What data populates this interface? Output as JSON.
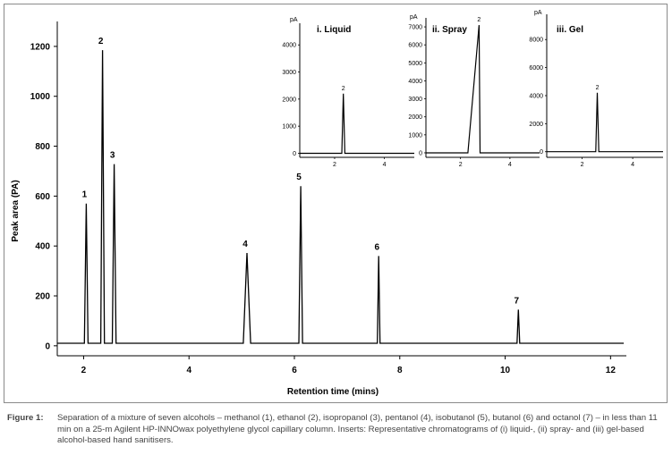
{
  "chart_data": [
    {
      "type": "line",
      "xlabel": "Retention time (mins)",
      "ylabel": "Peak area (PA)",
      "xlim": [
        1.5,
        12.3
      ],
      "ylim": [
        -40,
        1300
      ],
      "xticks": [
        2,
        4,
        6,
        8,
        10,
        12
      ],
      "yticks": [
        0,
        200,
        400,
        600,
        800,
        1000,
        1200
      ],
      "baseline": 10,
      "peaks": [
        {
          "label": "1",
          "x": 2.05,
          "y": 570
        },
        {
          "label": "2",
          "x": 2.36,
          "y": 1185
        },
        {
          "label": "3",
          "x": 2.58,
          "y": 728
        },
        {
          "label": "4",
          "x": 5.1,
          "y": 372
        },
        {
          "label": "5",
          "x": 6.12,
          "y": 640
        },
        {
          "label": "6",
          "x": 7.6,
          "y": 360
        },
        {
          "label": "7",
          "x": 10.25,
          "y": 145
        }
      ]
    },
    {
      "type": "line",
      "title": "i. Liquid",
      "yunit": "pA",
      "xticks": [
        2,
        4
      ],
      "yticks": [
        0,
        1000,
        2000,
        3000,
        4000
      ],
      "peaks": [
        {
          "label": "2",
          "x": 2.35,
          "y": 2200
        }
      ]
    },
    {
      "type": "line",
      "title": "ii. Spray",
      "yunit": "pA",
      "xticks": [
        2,
        4
      ],
      "yticks": [
        0,
        1000,
        2000,
        3000,
        4000,
        5000,
        6000,
        7000
      ],
      "peaks": [
        {
          "label": "2",
          "x": 2.75,
          "y": 7100
        }
      ]
    },
    {
      "type": "line",
      "title": "iii. Gel",
      "yunit": "pA",
      "xticks": [
        2,
        4
      ],
      "yticks": [
        0,
        2000,
        4000,
        6000,
        8000
      ],
      "peaks": [
        {
          "label": "2",
          "x": 2.6,
          "y": 4200
        }
      ]
    }
  ],
  "caption": {
    "label": "Figure 1:",
    "text": "Separation of a mixture of seven alcohols – methanol (1), ethanol (2), isopropanol (3), pentanol (4), isobutanol (5), butanol (6) and octanol (7) – in less than 11 min on a 25-m Agilent HP-INNOwax polyethylene glycol capillary column. Inserts: Representative chromatograms of (i) liquid-, (ii) spray- and (iii) gel-based alcohol-based hand sanitisers."
  }
}
